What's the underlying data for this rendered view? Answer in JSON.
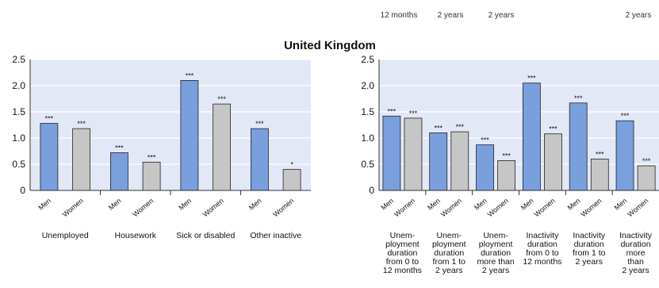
{
  "top_partial_labels": [
    "12 months",
    "2 years",
    "2 years",
    "2 years"
  ],
  "title": "United Kingdom",
  "colors": {
    "men": "#7a9fdd",
    "women": "#c6c6c6",
    "plot_bg": "#e3e8f7",
    "grid": "#ffffff",
    "frame": "#333333"
  },
  "chart_data": [
    {
      "type": "bar",
      "ylim": [
        0,
        2.5
      ],
      "yticks": [
        "0",
        "0.5",
        "1.0",
        "1.5",
        "2.0",
        "2.5"
      ],
      "ytick_values": [
        0,
        0.5,
        1.0,
        1.5,
        2.0,
        2.5
      ],
      "grid": true,
      "sex_labels": [
        "Men",
        "Women"
      ],
      "groups": [
        {
          "label": [
            "Unemployed"
          ],
          "men": 1.28,
          "women": 1.18,
          "men_sig": "***",
          "women_sig": "***"
        },
        {
          "label": [
            "Housework"
          ],
          "men": 0.72,
          "women": 0.54,
          "men_sig": "***",
          "women_sig": "***"
        },
        {
          "label": [
            "Sick or disabled"
          ],
          "men": 2.1,
          "women": 1.65,
          "men_sig": "***",
          "women_sig": "***"
        },
        {
          "label": [
            "Other inactive"
          ],
          "men": 1.18,
          "women": 0.4,
          "men_sig": "***",
          "women_sig": "*"
        }
      ]
    },
    {
      "type": "bar",
      "ylim": [
        0,
        2.5
      ],
      "yticks": [
        "0",
        "0.5",
        "1.0",
        "1.5",
        "2.0",
        "2.5"
      ],
      "ytick_values": [
        0,
        0.5,
        1.0,
        1.5,
        2.0,
        2.5
      ],
      "grid": true,
      "sex_labels": [
        "Men",
        "Women"
      ],
      "groups": [
        {
          "label": [
            "Unem-",
            "ployment",
            "duration",
            "from 0 to",
            "12 months"
          ],
          "men": 1.42,
          "women": 1.38,
          "men_sig": "***",
          "women_sig": "***"
        },
        {
          "label": [
            "Unem-",
            "ployment",
            "duration",
            "from 1 to",
            "2 years"
          ],
          "men": 1.1,
          "women": 1.12,
          "men_sig": "***",
          "women_sig": "***"
        },
        {
          "label": [
            "Unem-",
            "ployment",
            "duration",
            "more than",
            "2 years"
          ],
          "men": 0.87,
          "women": 0.57,
          "men_sig": "***",
          "women_sig": "***"
        },
        {
          "label": [
            "Inactivity",
            "duration",
            "from 0 to",
            "12 months"
          ],
          "men": 2.05,
          "women": 1.08,
          "men_sig": "***",
          "women_sig": "***"
        },
        {
          "label": [
            "Inactivity",
            "duration",
            "from 1 to",
            "2 years"
          ],
          "men": 1.67,
          "women": 0.6,
          "men_sig": "***",
          "women_sig": "***"
        },
        {
          "label": [
            "Inactivity",
            "duration",
            "more",
            "than",
            "2 years"
          ],
          "men": 1.33,
          "women": 0.47,
          "men_sig": "***",
          "women_sig": "***"
        }
      ]
    }
  ]
}
